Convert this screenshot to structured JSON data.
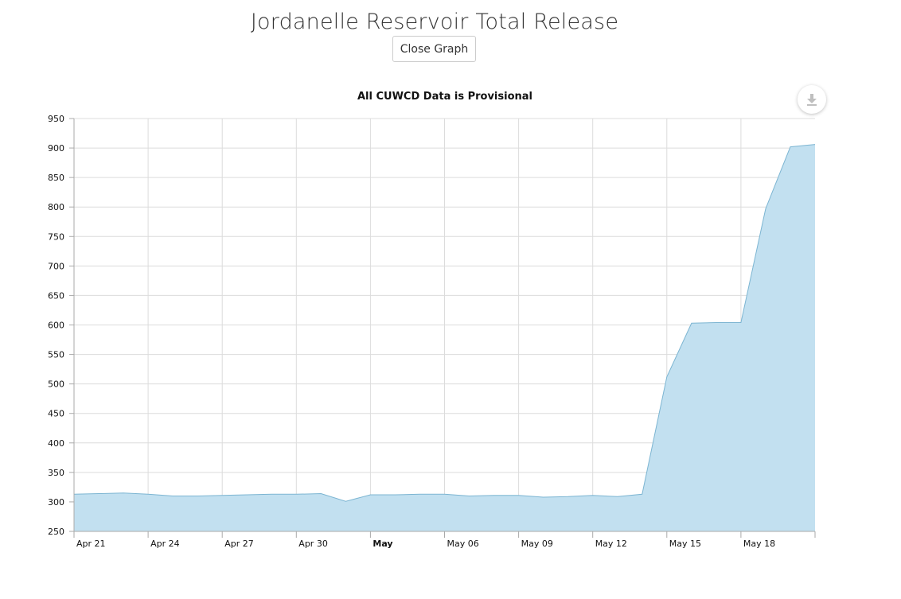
{
  "header": {
    "title": "Jordanelle Reservoir Total Release",
    "close_button_label": "Close Graph"
  },
  "export": {
    "icon": "download-icon"
  },
  "colors": {
    "area_fill": "#c2e0f0",
    "area_line": "#7cb5d2",
    "grid": "#dcdcdc",
    "axis": "#aaaaaa",
    "text": "#111111"
  },
  "chart_data": {
    "type": "area",
    "title": "All CUWCD Data is Provisional",
    "xlabel": "",
    "ylabel": "",
    "ylim": [
      250,
      950
    ],
    "yticks": [
      250,
      300,
      350,
      400,
      450,
      500,
      550,
      600,
      650,
      700,
      750,
      800,
      850,
      900,
      950
    ],
    "xticks": [
      {
        "date": "2024-04-21",
        "label": "Apr 21",
        "bold": false
      },
      {
        "date": "2024-04-24",
        "label": "Apr 24",
        "bold": false
      },
      {
        "date": "2024-04-27",
        "label": "Apr 27",
        "bold": false
      },
      {
        "date": "2024-04-30",
        "label": "Apr 30",
        "bold": false
      },
      {
        "date": "2024-05-03",
        "label": "May",
        "bold": true
      },
      {
        "date": "2024-05-06",
        "label": "May 06",
        "bold": false
      },
      {
        "date": "2024-05-09",
        "label": "May 09",
        "bold": false
      },
      {
        "date": "2024-05-12",
        "label": "May 12",
        "bold": false
      },
      {
        "date": "2024-05-15",
        "label": "May 15",
        "bold": false
      },
      {
        "date": "2024-05-18",
        "label": "May 18",
        "bold": false
      }
    ],
    "xrange": [
      "2024-04-21",
      "2024-05-21"
    ],
    "grid": true,
    "legend": false,
    "series": [
      {
        "x": [
          "2024-04-21",
          "2024-04-22",
          "2024-04-23",
          "2024-04-24",
          "2024-04-25",
          "2024-04-26",
          "2024-04-27",
          "2024-04-28",
          "2024-04-29",
          "2024-04-30",
          "2024-05-01",
          "2024-05-02",
          "2024-05-03",
          "2024-05-04",
          "2024-05-05",
          "2024-05-06",
          "2024-05-07",
          "2024-05-08",
          "2024-05-09",
          "2024-05-10",
          "2024-05-11",
          "2024-05-12",
          "2024-05-13",
          "2024-05-14",
          "2024-05-15",
          "2024-05-16",
          "2024-05-17",
          "2024-05-18",
          "2024-05-19",
          "2024-05-20",
          "2024-05-21"
        ],
        "values": [
          313,
          314,
          315,
          313,
          310,
          310,
          311,
          312,
          313,
          313,
          314,
          301,
          312,
          312,
          313,
          313,
          310,
          311,
          311,
          308,
          309,
          311,
          309,
          313,
          512,
          603,
          604,
          604,
          797,
          902,
          906
        ]
      }
    ]
  }
}
